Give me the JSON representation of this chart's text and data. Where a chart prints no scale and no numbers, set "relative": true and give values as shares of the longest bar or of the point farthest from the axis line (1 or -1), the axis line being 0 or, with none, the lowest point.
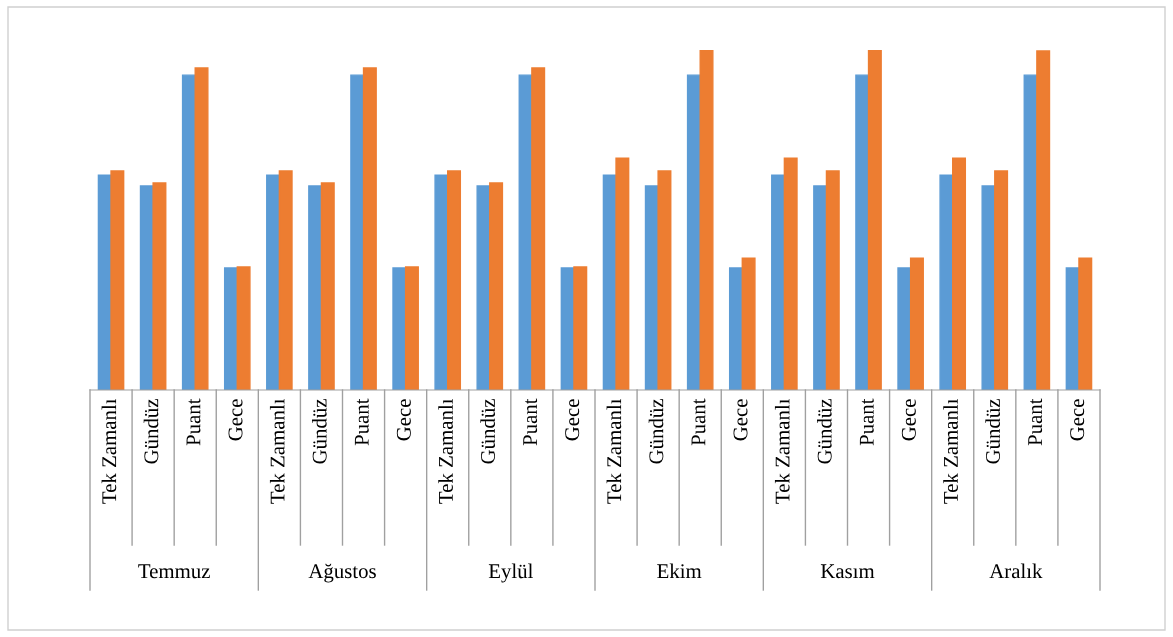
{
  "chart_data": {
    "type": "bar",
    "relative": true,
    "categories": [
      "Tek Zamanlı",
      "Gündüz",
      "Puant",
      "Gece",
      "Tek Zamanlı",
      "Gündüz",
      "Puant",
      "Gece",
      "Tek Zamanlı",
      "Gündüz",
      "Puant",
      "Gece",
      "Tek Zamanlı",
      "Gündüz",
      "Puant",
      "Gece",
      "Tek Zamanlı",
      "Gündüz",
      "Puant",
      "Gece",
      "Tek Zamanlı",
      "Gündüz",
      "Puant",
      "Gece"
    ],
    "annotations": [
      "Temmuz",
      "Ağustos",
      "Eylül",
      "Ekim",
      "Kasım",
      "Aralık"
    ],
    "series": [
      {
        "color": "#5b9bd5",
        "values": [
          0.632,
          0.6,
          0.926,
          0.359,
          0.632,
          0.6,
          0.926,
          0.359,
          0.632,
          0.6,
          0.926,
          0.359,
          0.632,
          0.6,
          0.926,
          0.359,
          0.632,
          0.6,
          0.926,
          0.359,
          0.632,
          0.6,
          0.926,
          0.359
        ]
      },
      {
        "color": "#ed7d31",
        "values": [
          0.644,
          0.609,
          0.947,
          0.362,
          0.644,
          0.609,
          0.947,
          0.362,
          0.644,
          0.609,
          0.947,
          0.362,
          0.682,
          0.644,
          1,
          0.388,
          0.682,
          0.644,
          1,
          0.388,
          0.682,
          0.644,
          0.997,
          0.388
        ]
      }
    ],
    "legend": false
  }
}
